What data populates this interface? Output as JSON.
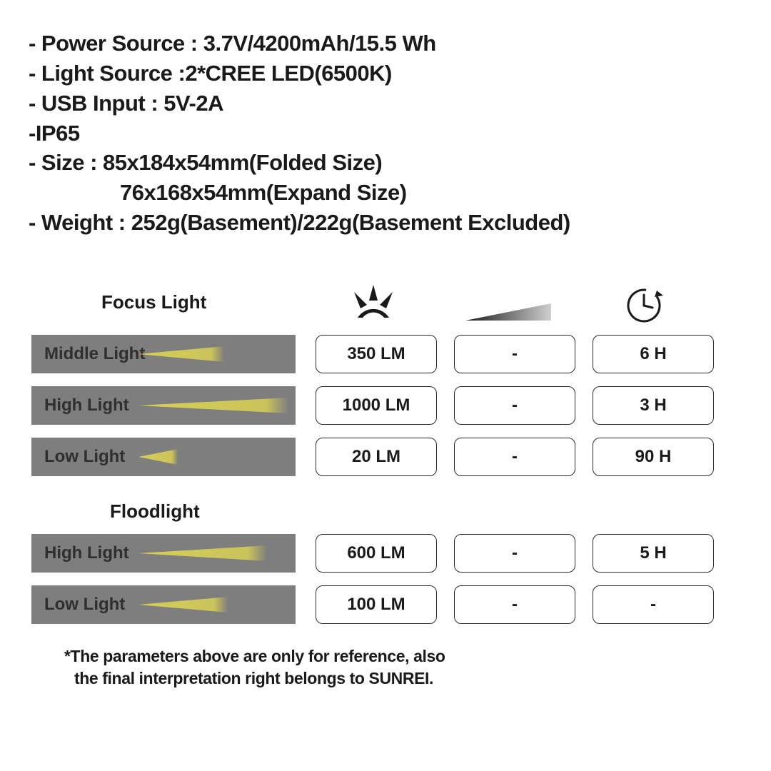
{
  "specs": {
    "l1": "- Power Source : 3.7V/4200mAh/15.5 Wh",
    "l2": "- Light Source :2*CREE LED(6500K)",
    "l3": "- USB Input : 5V-2A",
    "l4": "-IP65",
    "l5": "- Size : 85x184x54mm(Folded Size)",
    "l6": "76x168x54mm(Expand Size)",
    "l7": "- Weight : 252g(Basement)/222g(Basement Excluded)"
  },
  "section1": {
    "title": "Focus Light",
    "rows": [
      {
        "label": "Middle Light",
        "lumens": "350 LM",
        "dist": "-",
        "time": "6 H",
        "beam_len": 120
      },
      {
        "label": "High Light",
        "lumens": "1000 LM",
        "dist": "-",
        "time": "3 H",
        "beam_len": 210
      },
      {
        "label": "Low Light",
        "lumens": "20 LM",
        "dist": "-",
        "time": "90 H",
        "beam_len": 55
      }
    ]
  },
  "section2": {
    "title": "Floodlight",
    "rows": [
      {
        "label": "High Light",
        "lumens": "600 LM",
        "dist": "-",
        "time": "5 H",
        "beam_len": 180
      },
      {
        "label": "Low Light",
        "lumens": "100 LM",
        "dist": "-",
        "time": "-",
        "beam_len": 125
      }
    ]
  },
  "footnote": {
    "l1": "*The parameters above are only for reference, also",
    "l2": "the final interpretation right belongs to SUNREI."
  },
  "style": {
    "bar_bg": "#7e7e7e",
    "beam_color": "#d8cf55",
    "border_color": "#2a2a2a",
    "text_color": "#1a1a1a"
  }
}
